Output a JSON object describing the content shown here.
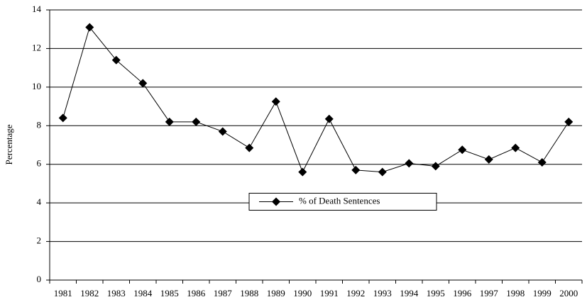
{
  "chart_data": {
    "type": "line",
    "y_label": "Percentage",
    "categories": [
      "1981",
      "1982",
      "1983",
      "1984",
      "1985",
      "1986",
      "1987",
      "1988",
      "1989",
      "1990",
      "1991",
      "1992",
      "1993",
      "1994",
      "1995",
      "1996",
      "1997",
      "1998",
      "1999",
      "2000"
    ],
    "series": [
      {
        "name": "% of Death Sentences",
        "color": "#000000",
        "values": [
          8.4,
          13.1,
          11.4,
          10.2,
          8.2,
          8.2,
          7.7,
          6.85,
          9.25,
          5.6,
          8.35,
          5.7,
          5.6,
          6.05,
          5.9,
          6.75,
          6.25,
          6.85,
          6.1,
          8.2
        ]
      }
    ],
    "ylim": [
      0,
      14
    ],
    "yticks": [
      0,
      2,
      4,
      6,
      8,
      10,
      12,
      14
    ],
    "grid": true,
    "legend": "lower center"
  }
}
